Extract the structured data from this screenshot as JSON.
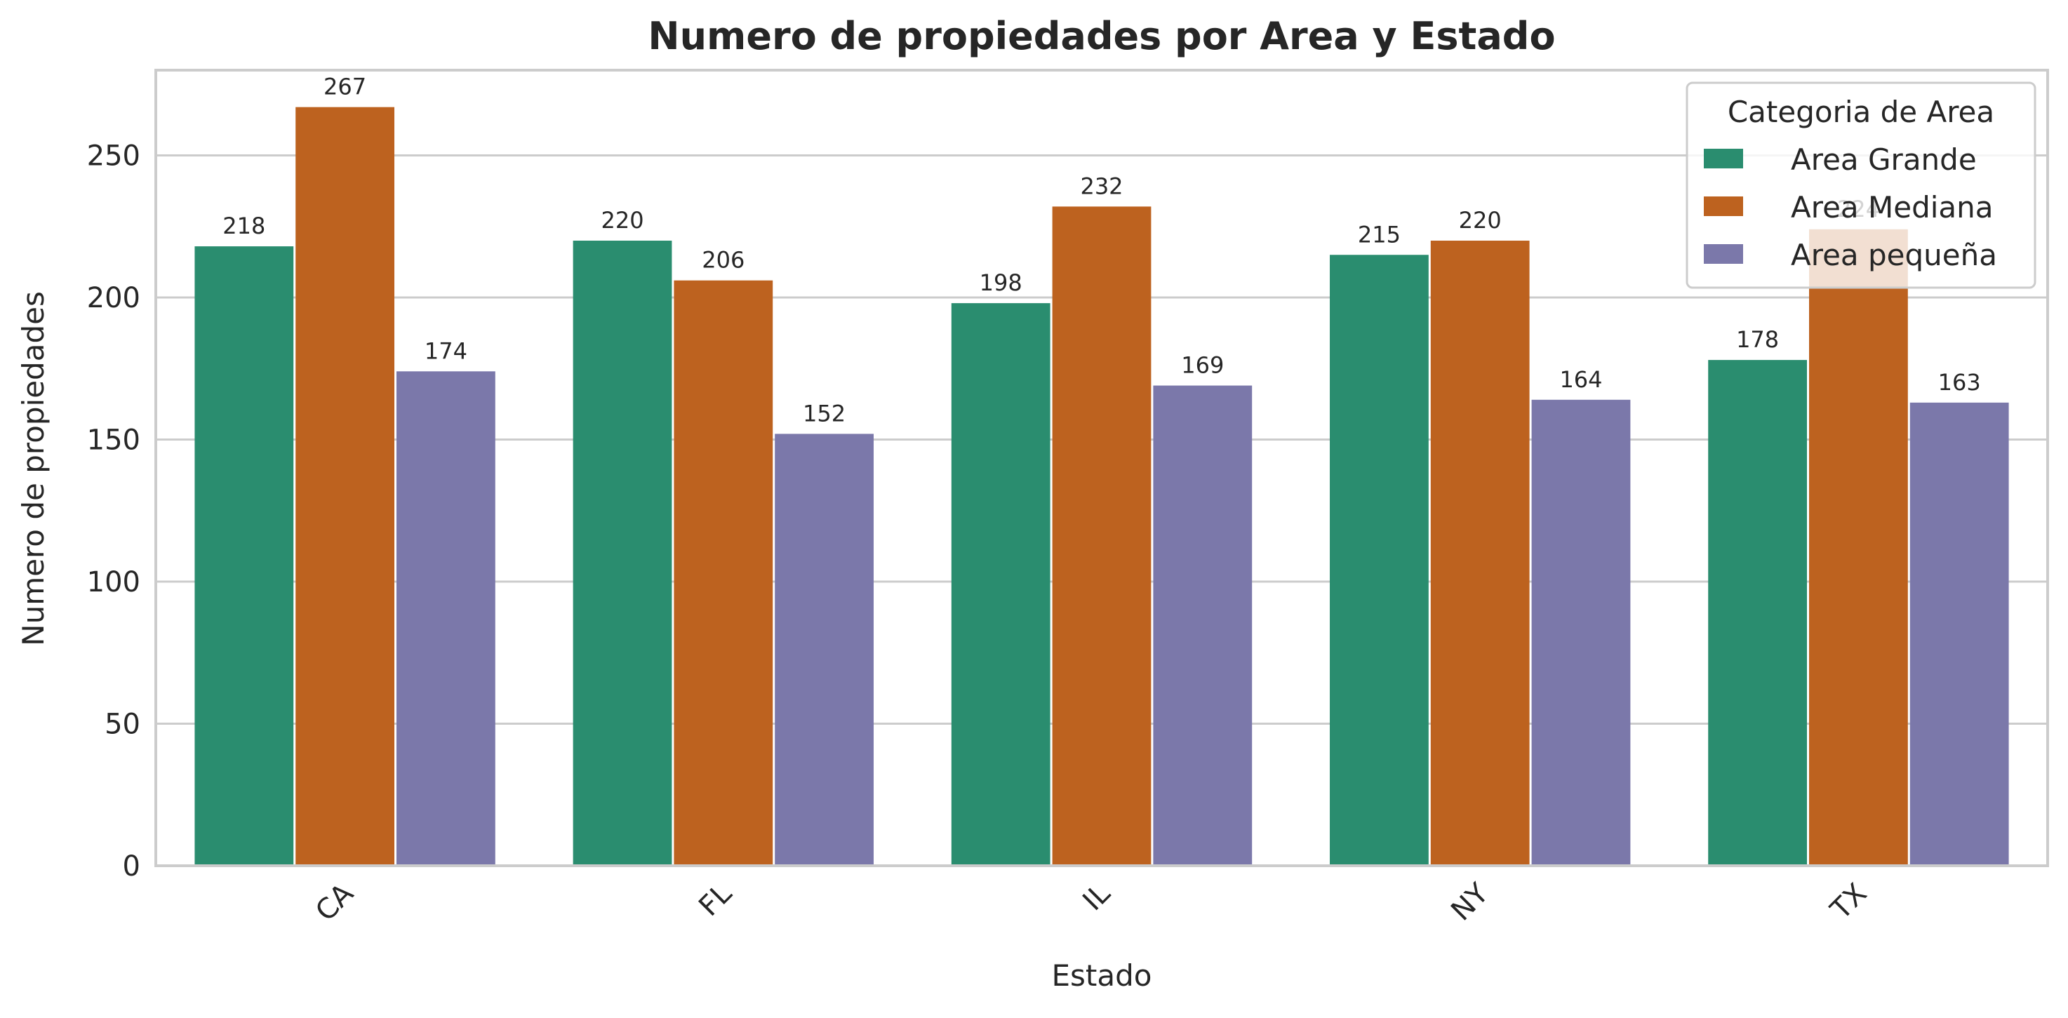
{
  "chart_data": {
    "type": "bar",
    "title": "Numero de propiedades por Area y Estado",
    "xlabel": "Estado",
    "ylabel": "Numero de propiedades",
    "categories": [
      "CA",
      "FL",
      "IL",
      "NY",
      "TX"
    ],
    "series": [
      {
        "name": "Area Grande",
        "color": "#2a8d6f",
        "values": [
          218,
          220,
          198,
          215,
          178
        ]
      },
      {
        "name": "Area Mediana",
        "color": "#bd621f",
        "values": [
          267,
          206,
          232,
          220,
          224
        ]
      },
      {
        "name": "Area pequeña",
        "color": "#7b78aa",
        "values": [
          174,
          152,
          169,
          164,
          163
        ]
      }
    ],
    "ylim": [
      0,
      280
    ],
    "yticks": [
      0,
      50,
      100,
      150,
      200,
      250
    ],
    "grid": true,
    "legend": {
      "title": "Categoria de Area",
      "position": "top-right"
    }
  }
}
